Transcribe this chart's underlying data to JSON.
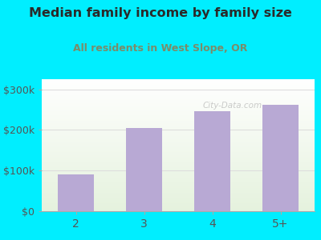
{
  "title": "Median family income by family size",
  "subtitle": "All residents in West Slope, OR",
  "categories": [
    "2",
    "3",
    "4",
    "5+"
  ],
  "values": [
    90000,
    205000,
    247000,
    262000
  ],
  "bar_color": "#b8a9d4",
  "title_color": "#2a2a2a",
  "subtitle_color": "#7a8c6a",
  "background_outer": "#00eeff",
  "ylim": [
    0,
    325000
  ],
  "yticks": [
    0,
    100000,
    200000,
    300000
  ],
  "ytick_labels": [
    "$0",
    "$100k",
    "$200k",
    "$300k"
  ],
  "xtick_color": "#555555",
  "ytick_color": "#555555",
  "watermark": "City-Data.com",
  "grid_color": "#dddddd"
}
